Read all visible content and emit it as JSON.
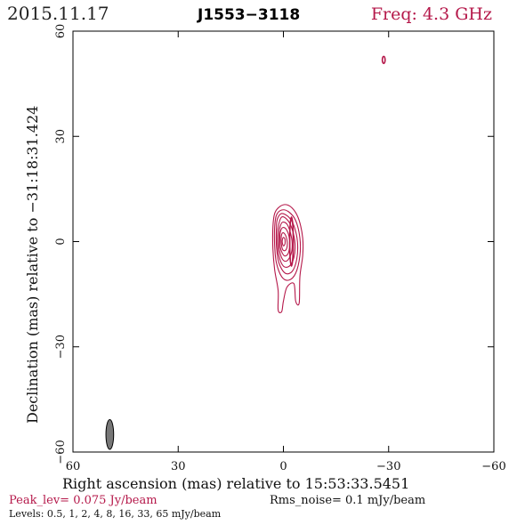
{
  "header": {
    "date": "2015.11.17",
    "source": "J1553−3118",
    "frequency": "Freq: 4.3 GHz"
  },
  "footer": {
    "peak_level": "Peak_lev=  0.075 Jy/beam",
    "rms_noise": "Rms_noise=   0.1 mJy/beam",
    "levels": "Levels: 0.5,    1,    2,    4,    8,   16,   33,   65 mJy/beam"
  },
  "colors": {
    "contour": "#b5184a",
    "beam_fill": "#777777",
    "header_accent": "#b5184a"
  },
  "chart_data": {
    "type": "contour",
    "xlabel": "Right ascension (mas) relative to 15:53:33.5451",
    "ylabel": "Declination (mas) relative to −31:18:31.424",
    "xlim": [
      60,
      -60
    ],
    "ylim": [
      -60,
      60
    ],
    "x_ticks": [
      60,
      30,
      0,
      -30,
      -60
    ],
    "y_ticks": [
      -60,
      -30,
      0,
      30,
      60
    ],
    "x_tick_labels": [
      "60",
      "30",
      "0",
      "−30",
      "−60"
    ],
    "y_tick_labels": [
      "−60",
      "−30",
      "0",
      "30",
      "60"
    ],
    "contour_levels_mJy_per_beam": [
      0.5,
      1,
      2,
      4,
      8,
      16,
      33,
      65
    ],
    "peak_Jy_per_beam": 0.075,
    "rms_noise_mJy_per_beam": 0.1,
    "core": {
      "x": 0,
      "y": 0
    },
    "contours": [
      {
        "level": 0.5,
        "points": [
          [
            1,
            10
          ],
          [
            -1,
            10.5
          ],
          [
            -3,
            9
          ],
          [
            -4.5,
            6
          ],
          [
            -5.5,
            1
          ],
          [
            -5.5,
            -4
          ],
          [
            -4.7,
            -10
          ],
          [
            -4.5,
            -17.5
          ],
          [
            -3.5,
            -17
          ],
          [
            -3,
            -12
          ],
          [
            -1,
            -13
          ],
          [
            0,
            -17
          ],
          [
            0.5,
            -20
          ],
          [
            1.5,
            -19.5
          ],
          [
            1.5,
            -14
          ],
          [
            2.5,
            -8
          ],
          [
            3,
            -2
          ],
          [
            3,
            4
          ],
          [
            2.5,
            8
          ]
        ]
      },
      {
        "level": 1,
        "points": [
          [
            0.5,
            9
          ],
          [
            -1.5,
            8.5
          ],
          [
            -3.5,
            6
          ],
          [
            -4.7,
            1
          ],
          [
            -4.7,
            -4
          ],
          [
            -3.5,
            -9
          ],
          [
            -1.5,
            -11
          ],
          [
            0.5,
            -10
          ],
          [
            2,
            -6
          ],
          [
            2.5,
            -1
          ],
          [
            2.5,
            4
          ],
          [
            2,
            7.5
          ]
        ]
      },
      {
        "level": 2,
        "points": [
          [
            0.5,
            8
          ],
          [
            -1.5,
            7
          ],
          [
            -3,
            4.5
          ],
          [
            -4,
            0
          ],
          [
            -3.8,
            -5
          ],
          [
            -2.5,
            -8.5
          ],
          [
            -0.5,
            -9
          ],
          [
            1.3,
            -6
          ],
          [
            2,
            -1
          ],
          [
            2,
            4
          ],
          [
            1.7,
            6.5
          ]
        ]
      },
      {
        "level": 4,
        "points": [
          [
            0.5,
            7
          ],
          [
            -1.3,
            6
          ],
          [
            -2.5,
            3.5
          ],
          [
            -3.3,
            -0.5
          ],
          [
            -3,
            -4.5
          ],
          [
            -1.7,
            -7
          ],
          [
            0,
            -7
          ],
          [
            1.3,
            -4
          ],
          [
            1.7,
            0
          ],
          [
            1.5,
            4
          ]
        ]
      },
      {
        "level": 8,
        "points": [
          [
            0.3,
            5.5
          ],
          [
            -1,
            5
          ],
          [
            -2,
            2.5
          ],
          [
            -2.5,
            -0.5
          ],
          [
            -2.2,
            -3.5
          ],
          [
            -1,
            -5.5
          ],
          [
            0.3,
            -5
          ],
          [
            1.2,
            -2
          ],
          [
            1.3,
            1.5
          ],
          [
            1,
            4
          ]
        ]
      },
      {
        "level": 16,
        "points": [
          [
            0.2,
            4
          ],
          [
            -0.8,
            3.5
          ],
          [
            -1.6,
            1.5
          ],
          [
            -1.8,
            -1
          ],
          [
            -1.3,
            -3.5
          ],
          [
            -0.2,
            -4
          ],
          [
            0.8,
            -2
          ],
          [
            1,
            1
          ],
          [
            0.8,
            3
          ]
        ]
      },
      {
        "level": 33,
        "points": [
          [
            0.2,
            2.5
          ],
          [
            -0.5,
            2
          ],
          [
            -1,
            0.5
          ],
          [
            -1.1,
            -1.2
          ],
          [
            -0.6,
            -2.5
          ],
          [
            0.2,
            -2.3
          ],
          [
            0.6,
            -0.5
          ],
          [
            0.6,
            1.5
          ]
        ]
      },
      {
        "level": 65,
        "points": [
          [
            0,
            1.2
          ],
          [
            -0.4,
            0.8
          ],
          [
            -0.5,
            0
          ],
          [
            -0.4,
            -0.8
          ],
          [
            0,
            -1.2
          ],
          [
            0.3,
            -0.4
          ],
          [
            0.3,
            0.5
          ]
        ]
      }
    ],
    "hotspots": [
      {
        "x": -2.3,
        "y": 0,
        "rx": 0.5,
        "ry": 7
      },
      {
        "x": -28.6,
        "y": 51.8,
        "rx": 0.4,
        "ry": 1
      }
    ],
    "beam": {
      "x": 49.5,
      "y": -55,
      "major_mas": 8.5,
      "minor_mas": 2.2,
      "pa_deg": 0
    }
  }
}
